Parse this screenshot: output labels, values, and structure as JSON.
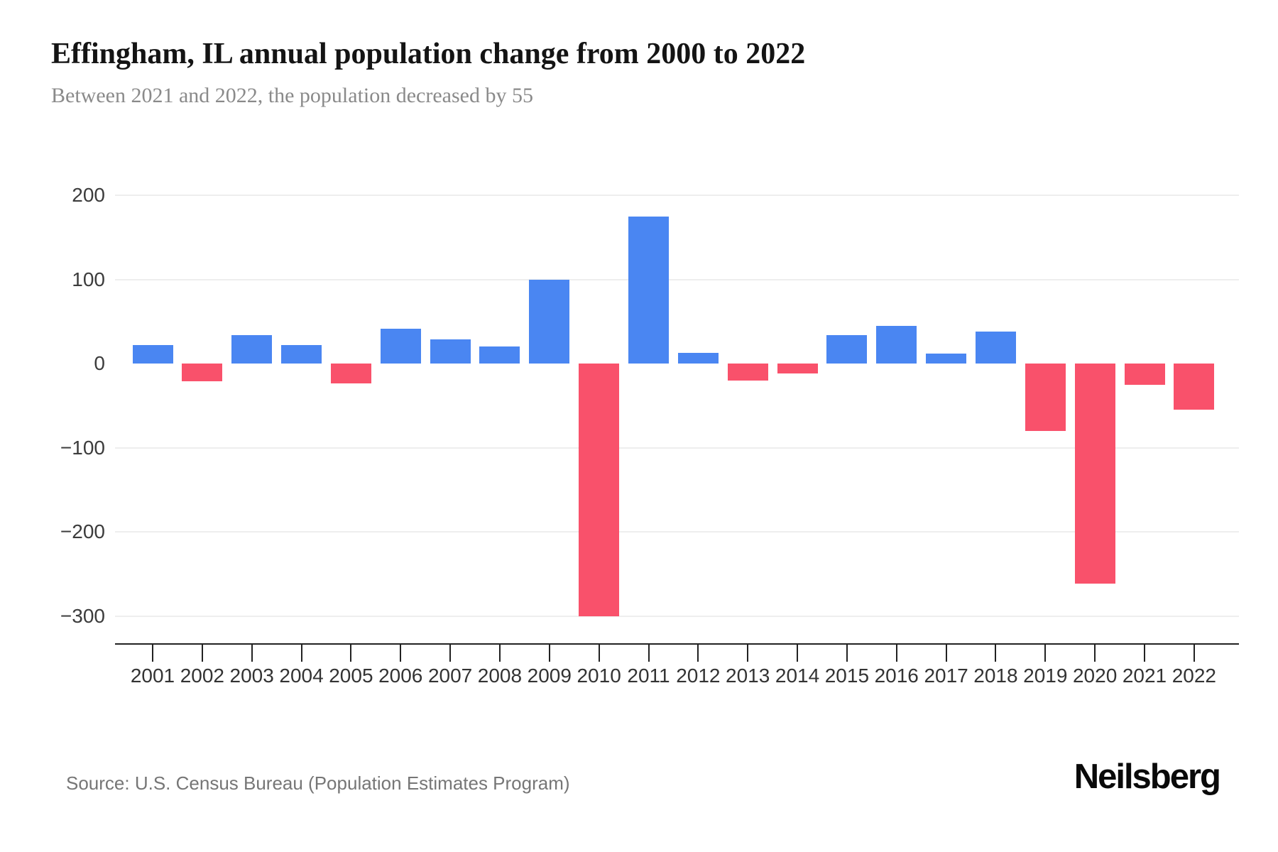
{
  "header": {
    "title": "Effingham, IL annual population change from 2000 to 2022",
    "subtitle": "Between 2021 and 2022, the population decreased by 55"
  },
  "footer": {
    "source": "Source: U.S. Census Bureau (Population Estimates Program)",
    "brand": "Neilsberg"
  },
  "chart_data": {
    "type": "bar",
    "title": "Effingham, IL annual population change from 2000 to 2022",
    "subtitle": "Between 2021 and 2022, the population decreased by 55",
    "categories": [
      "2001",
      "2002",
      "2003",
      "2004",
      "2005",
      "2006",
      "2007",
      "2008",
      "2009",
      "2010",
      "2011",
      "2012",
      "2013",
      "2014",
      "2015",
      "2016",
      "2017",
      "2018",
      "2019",
      "2020",
      "2021",
      "2022"
    ],
    "values": [
      22,
      -21,
      34,
      22,
      -24,
      41,
      29,
      20,
      100,
      -300,
      175,
      13,
      -20,
      -12,
      34,
      45,
      12,
      38,
      -80,
      -262,
      -25,
      -55
    ],
    "xlabel": "",
    "ylabel": "",
    "yticks": [
      200,
      100,
      0,
      -100,
      -200,
      -300
    ],
    "ylim": [
      -300,
      200
    ],
    "grid": "horizontal",
    "legend": "none",
    "colors": {
      "positive": "#4a86f2",
      "negative": "#f9516b",
      "gridline": "#eeeeee",
      "axis": "#222222"
    }
  }
}
